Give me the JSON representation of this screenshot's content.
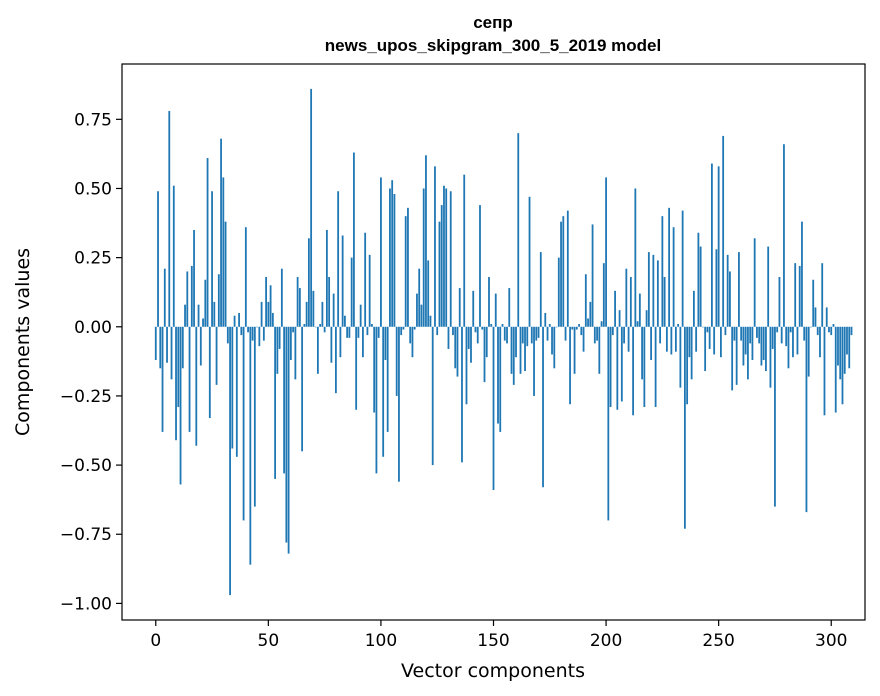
{
  "chart_data": {
    "type": "bar",
    "title": "cепр",
    "subtitle": "news_upos_skipgram_300_5_2019 model",
    "xlabel": "Vector components",
    "ylabel": "Components values",
    "xlim": [
      -15,
      315
    ],
    "ylim": [
      -1.06,
      0.95
    ],
    "xticks": [
      0,
      50,
      100,
      150,
      200,
      250,
      300
    ],
    "xtick_labels": [
      "0",
      "50",
      "100",
      "150",
      "200",
      "250",
      "300"
    ],
    "yticks": [
      0.75,
      0.5,
      0.25,
      0.0,
      -0.25,
      -0.5,
      -0.75,
      -1.0
    ],
    "ytick_labels": [
      "0.75",
      "0.50",
      "0.25",
      "0.00",
      "−0.25",
      "−0.50",
      "−0.75",
      "−1.00"
    ],
    "bar_color": "#1f77b4",
    "grid": false,
    "legend": "none",
    "values": [
      -0.12,
      0.49,
      -0.15,
      -0.38,
      0.21,
      -0.13,
      0.78,
      -0.19,
      0.51,
      -0.41,
      -0.29,
      -0.57,
      -0.15,
      0.08,
      0.2,
      -0.38,
      0.22,
      0.35,
      -0.43,
      0.08,
      -0.14,
      0.03,
      0.17,
      0.61,
      -0.33,
      0.49,
      0.09,
      -0.21,
      0.19,
      0.68,
      0.54,
      0.38,
      -0.06,
      -0.97,
      -0.44,
      0.04,
      -0.47,
      0.05,
      -0.03,
      -0.7,
      0.36,
      -0.02,
      -0.86,
      -0.05,
      -0.65,
      0.0,
      -0.07,
      0.09,
      -0.05,
      0.18,
      0.09,
      0.15,
      0.05,
      -0.55,
      -0.17,
      -0.08,
      0.21,
      -0.53,
      -0.78,
      -0.82,
      -0.12,
      -0.02,
      -0.19,
      0.18,
      0.14,
      -0.45,
      0.01,
      0.09,
      0.32,
      0.86,
      0.13,
      0.0,
      -0.17,
      0.01,
      0.09,
      -0.02,
      0.35,
      0.18,
      -0.13,
      0.12,
      -0.24,
      0.49,
      -0.11,
      0.33,
      0.04,
      -0.04,
      -0.04,
      0.25,
      0.63,
      -0.3,
      -0.04,
      0.08,
      -0.11,
      0.34,
      -0.03,
      0.26,
      0.01,
      -0.31,
      -0.53,
      -0.04,
      0.54,
      -0.47,
      -0.12,
      -0.38,
      0.5,
      0.53,
      0.48,
      -0.25,
      -0.56,
      -0.03,
      -0.01,
      0.4,
      0.43,
      -0.06,
      -0.11,
      -0.01,
      0.12,
      0.21,
      0.08,
      0.5,
      0.62,
      0.24,
      0.04,
      -0.5,
      0.58,
      -0.03,
      0.38,
      0.44,
      0.51,
      0.5,
      -0.08,
      0.49,
      -0.03,
      -0.15,
      -0.18,
      0.14,
      -0.49,
      0.55,
      -0.28,
      -0.08,
      -0.13,
      0.13,
      -0.02,
      -0.06,
      0.44,
      -0.01,
      -0.2,
      -0.11,
      0.18,
      0.01,
      -0.59,
      0.12,
      -0.35,
      -0.38,
      0.01,
      -0.05,
      -0.06,
      0.14,
      -0.17,
      -0.21,
      -0.11,
      0.7,
      -0.17,
      -0.06,
      -0.16,
      -0.07,
      0.47,
      -0.06,
      -0.25,
      -0.05,
      -0.04,
      0.27,
      -0.58,
      0.05,
      -0.05,
      0.01,
      -0.1,
      -0.15,
      0.0,
      0.25,
      0.38,
      0.4,
      -0.05,
      0.42,
      -0.28,
      -0.01,
      -0.17,
      -0.01,
      0.01,
      -0.03,
      -0.09,
      0.19,
      0.03,
      0.09,
      0.37,
      -0.06,
      -0.05,
      -0.17,
      0.02,
      0.23,
      0.54,
      -0.7,
      -0.29,
      -0.03,
      0.13,
      -0.3,
      0.06,
      -0.27,
      -0.06,
      0.21,
      -0.09,
      0.18,
      -0.32,
      0.5,
      0.02,
      0.12,
      -0.19,
      -0.29,
      0.06,
      0.27,
      -0.12,
      0.26,
      -0.29,
      0.24,
      -0.06,
      0.4,
      0.18,
      -0.09,
      0.43,
      -0.1,
      0.36,
      -0.09,
      0.01,
      -0.22,
      0.42,
      -0.73,
      -0.28,
      -0.11,
      -0.19,
      0.13,
      -0.09,
      0.34,
      0.29,
      0.0,
      -0.16,
      -0.02,
      -0.08,
      0.59,
      -0.1,
      0.28,
      0.58,
      -0.11,
      0.69,
      -0.03,
      0.26,
      0.2,
      -0.23,
      -0.05,
      -0.21,
      0.27,
      -0.05,
      -0.14,
      -0.1,
      -0.19,
      -0.06,
      -0.12,
      0.32,
      -0.04,
      -0.06,
      -0.14,
      -0.12,
      -0.16,
      0.29,
      -0.22,
      -0.08,
      -0.65,
      -0.02,
      0.18,
      -0.06,
      0.66,
      -0.07,
      -0.15,
      -0.02,
      -0.11,
      0.23,
      -0.1,
      0.22,
      0.38,
      -0.05,
      -0.67,
      -0.18,
      0.0,
      0.17,
      0.07,
      -0.03,
      -0.11,
      0.23,
      -0.32,
      0.07,
      -0.02,
      -0.03,
      0.01,
      -0.31,
      -0.14,
      -0.19,
      -0.28,
      -0.17,
      -0.1,
      -0.15,
      -0.03
    ]
  }
}
